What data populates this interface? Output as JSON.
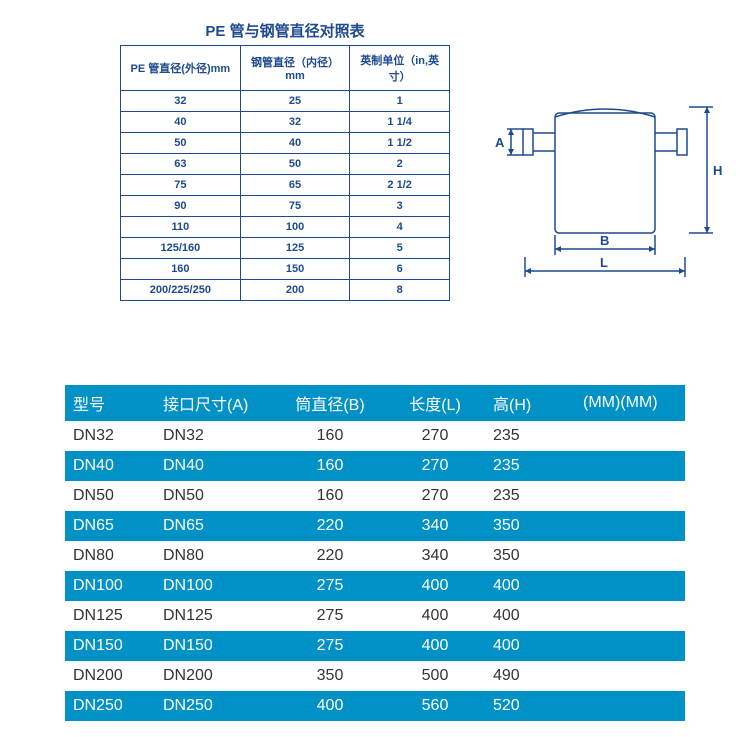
{
  "top": {
    "title": "PE 管与钢管直径对照表",
    "headers": [
      "PE 管直径(外径)mm",
      "钢管直径（内径）mm",
      "英制单位（in,英寸）"
    ],
    "rows": [
      [
        "32",
        "25",
        "1"
      ],
      [
        "40",
        "32",
        "1 1/4"
      ],
      [
        "50",
        "40",
        "1 1/2"
      ],
      [
        "63",
        "50",
        "2"
      ],
      [
        "75",
        "65",
        "2 1/2"
      ],
      [
        "90",
        "75",
        "3"
      ],
      [
        "110",
        "100",
        "4"
      ],
      [
        "125/160",
        "125",
        "5"
      ],
      [
        "160",
        "150",
        "6"
      ],
      [
        "200/225/250",
        "200",
        "8"
      ]
    ],
    "col_widths": [
      "120px",
      "110px",
      "100px"
    ]
  },
  "diagram": {
    "stroke_color": "#1d4a8e",
    "labels": {
      "A": "A",
      "B": "B",
      "L": "L",
      "H": "H"
    },
    "label_fontsize": 13
  },
  "bottom": {
    "header_bg": "#0091c7",
    "header_fg": "#ffffff",
    "row_fg": "#333333",
    "alt_bg": "#0091c7",
    "alt_fg": "#ffffff",
    "headers": [
      "型号",
      "接口尺寸(A)",
      "筒直径(B)",
      "长度(L)",
      "高(H)",
      "(MM)(MM)"
    ],
    "rows": [
      [
        "DN32",
        "DN32",
        "160",
        "270",
        "235",
        ""
      ],
      [
        "DN40",
        "DN40",
        "160",
        "270",
        "235",
        ""
      ],
      [
        "DN50",
        "DN50",
        "160",
        "270",
        "235",
        ""
      ],
      [
        "DN65",
        "DN65",
        "220",
        "340",
        "350",
        ""
      ],
      [
        "DN80",
        "DN80",
        "220",
        "340",
        "350",
        ""
      ],
      [
        "DN100",
        "DN100",
        "275",
        "400",
        "400",
        ""
      ],
      [
        "DN125",
        "DN125",
        "275",
        "400",
        "400",
        ""
      ],
      [
        "DN150",
        "DN150",
        "275",
        "400",
        "400",
        ""
      ],
      [
        "DN200",
        "DN200",
        "350",
        "500",
        "490",
        ""
      ],
      [
        "DN250",
        "DN250",
        "400",
        "560",
        "520",
        ""
      ]
    ]
  }
}
